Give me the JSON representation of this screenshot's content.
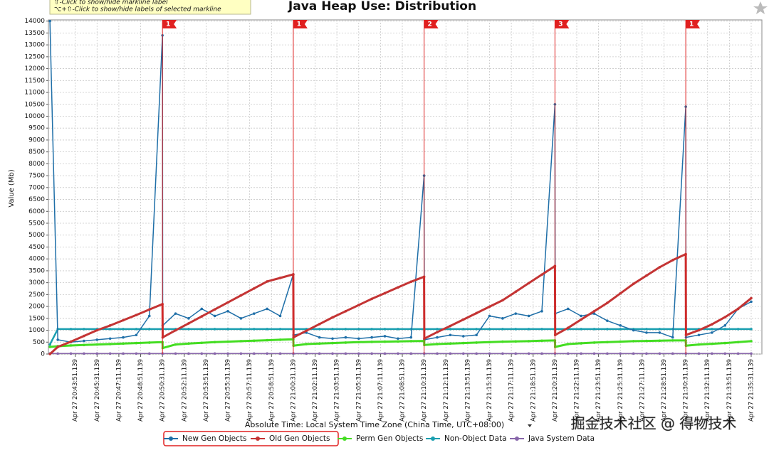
{
  "hints": [
    "⇧-Click to show/hide markline label",
    "⌥+⇧-Click to show/hide labels of selected markline"
  ],
  "watermark": "掘金技术社区 @ 得物技术",
  "chart_data": {
    "type": "line",
    "title": "Java Heap Use: Distribution",
    "y_label": "Value (Mb)",
    "x_label": "Absolute Time: Local System Time Zone (China Time, UTC+08:00)",
    "ylim": [
      0,
      14050
    ],
    "yticks": [
      0,
      500,
      1000,
      1500,
      2000,
      2500,
      3000,
      3500,
      4000,
      4500,
      5000,
      5500,
      6000,
      6500,
      7000,
      7500,
      8000,
      8500,
      9000,
      9500,
      10000,
      10500,
      11000,
      11500,
      12000,
      12500,
      13000,
      13500,
      14000
    ],
    "xlim": [
      "Apr 27 20:41:48.139",
      "Apr 27 21:36:20.139"
    ],
    "xticks": [
      "Apr 27 20:43:51.139",
      "Apr 27 20:45:31.139",
      "Apr 27 20:47:11.139",
      "Apr 27 20:48:51.139",
      "Apr 27 20:50:31.139",
      "Apr 27 20:52:11.139",
      "Apr 27 20:53:51.139",
      "Apr 27 20:55:31.139",
      "Apr 27 20:57:11.139",
      "Apr 27 20:58:51.139",
      "Apr 27 21:00:31.139",
      "Apr 27 21:02:11.139",
      "Apr 27 21:03:51.139",
      "Apr 27 21:05:31.139",
      "Apr 27 21:07:11.139",
      "Apr 27 21:08:51.139",
      "Apr 27 21:10:31.139",
      "Apr 27 21:12:11.139",
      "Apr 27 21:13:51.139",
      "Apr 27 21:15:31.139",
      "Apr 27 21:17:11.139",
      "Apr 27 21:18:51.139",
      "Apr 27 21:20:31.139",
      "Apr 27 21:22:11.139",
      "Apr 27 21:23:51.139",
      "Apr 27 21:25:31.139",
      "Apr 27 21:27:11.139",
      "Apr 27 21:28:51.139",
      "Apr 27 21:30:31.139",
      "Apr 27 21:32:11.139",
      "Apr 27 21:33:51.139",
      "Apr 27 21:35:31.139"
    ],
    "grid": true,
    "x": [
      "Apr 27 20:41:55.139",
      "Apr 27 20:42:31.139",
      "Apr 27 20:43:31.139",
      "Apr 27 20:44:31.139",
      "Apr 27 20:45:31.139",
      "Apr 27 20:46:31.139",
      "Apr 27 20:47:31.139",
      "Apr 27 20:48:31.139",
      "Apr 27 20:49:31.139",
      "Apr 27 20:50:31.139",
      "Apr 27 20:50:32.139",
      "Apr 27 20:51:31.139",
      "Apr 27 20:52:31.139",
      "Apr 27 20:53:31.139",
      "Apr 27 20:54:31.139",
      "Apr 27 20:55:31.139",
      "Apr 27 20:56:31.139",
      "Apr 27 20:57:31.139",
      "Apr 27 20:58:31.139",
      "Apr 27 20:59:31.139",
      "Apr 27 21:00:31.139",
      "Apr 27 21:00:32.139",
      "Apr 27 21:01:31.139",
      "Apr 27 21:02:31.139",
      "Apr 27 21:03:31.139",
      "Apr 27 21:04:31.139",
      "Apr 27 21:05:31.139",
      "Apr 27 21:06:31.139",
      "Apr 27 21:07:31.139",
      "Apr 27 21:08:31.139",
      "Apr 27 21:09:31.139",
      "Apr 27 21:10:31.139",
      "Apr 27 21:10:32.139",
      "Apr 27 21:11:31.139",
      "Apr 27 21:12:31.139",
      "Apr 27 21:13:31.139",
      "Apr 27 21:14:31.139",
      "Apr 27 21:15:31.139",
      "Apr 27 21:16:31.139",
      "Apr 27 21:17:31.139",
      "Apr 27 21:18:31.139",
      "Apr 27 21:19:31.139",
      "Apr 27 21:20:31.139",
      "Apr 27 21:20:32.139",
      "Apr 27 21:21:31.139",
      "Apr 27 21:22:31.139",
      "Apr 27 21:23:31.139",
      "Apr 27 21:24:31.139",
      "Apr 27 21:25:31.139",
      "Apr 27 21:26:31.139",
      "Apr 27 21:27:31.139",
      "Apr 27 21:28:31.139",
      "Apr 27 21:29:31.139",
      "Apr 27 21:30:31.139",
      "Apr 27 21:30:32.139",
      "Apr 27 21:31:31.139",
      "Apr 27 21:32:31.139",
      "Apr 27 21:33:31.139",
      "Apr 27 21:34:31.139",
      "Apr 27 21:35:31.139"
    ],
    "series": [
      {
        "name": "New Gen Objects",
        "color": "#1f6fa8",
        "width": 1.5,
        "values": [
          14000,
          600,
          500,
          550,
          600,
          650,
          700,
          800,
          1600,
          13400,
          1200,
          1700,
          1500,
          1900,
          1600,
          1800,
          1500,
          1700,
          1900,
          1600,
          3350,
          800,
          900,
          700,
          650,
          700,
          650,
          700,
          750,
          650,
          700,
          7500,
          600,
          700,
          800,
          750,
          800,
          1600,
          1500,
          1700,
          1600,
          1800,
          10500,
          1700,
          1900,
          1600,
          1700,
          1400,
          1200,
          1000,
          900,
          900,
          700,
          10400,
          700,
          800,
          900,
          1200,
          1900,
          2200
        ]
      },
      {
        "name": "Old Gen Objects",
        "color": "#c43434",
        "width": 3,
        "values": [
          0,
          300,
          520,
          760,
          1000,
          1200,
          1420,
          1640,
          1870,
          2100,
          700,
          994,
          1288,
          1582,
          1876,
          2170,
          2464,
          2758,
          3052,
          3200,
          3350,
          700,
          980,
          1260,
          1540,
          1800,
          2060,
          2320,
          2560,
          2800,
          3040,
          3250,
          650,
          920,
          1180,
          1450,
          1720,
          1990,
          2260,
          2620,
          2980,
          3340,
          3700,
          800,
          1100,
          1450,
          1800,
          2150,
          2550,
          2950,
          3300,
          3650,
          3950,
          4200,
          800,
          1000,
          1250,
          1550,
          1900,
          2350
        ]
      },
      {
        "name": "Perm Gen Objects",
        "color": "#44dd22",
        "width": 3,
        "values": [
          300,
          330,
          360,
          380,
          400,
          420,
          440,
          460,
          480,
          500,
          250,
          400,
          440,
          470,
          500,
          520,
          540,
          560,
          580,
          600,
          620,
          350,
          420,
          440,
          460,
          480,
          500,
          510,
          520,
          530,
          540,
          550,
          380,
          420,
          440,
          460,
          480,
          500,
          520,
          530,
          540,
          560,
          570,
          300,
          420,
          450,
          480,
          500,
          520,
          540,
          550,
          560,
          570,
          570,
          350,
          400,
          430,
          460,
          500,
          540
        ]
      },
      {
        "name": "Non-Object Data",
        "color": "#1a9fb0",
        "width": 2.5,
        "values": [
          400,
          1050,
          1050,
          1050,
          1050,
          1050,
          1050,
          1050,
          1050,
          1050,
          1050,
          1050,
          1050,
          1050,
          1050,
          1050,
          1050,
          1050,
          1050,
          1050,
          1050,
          1050,
          1050,
          1050,
          1050,
          1050,
          1050,
          1050,
          1050,
          1050,
          1050,
          1050,
          1050,
          1050,
          1050,
          1050,
          1050,
          1050,
          1050,
          1050,
          1050,
          1050,
          1050,
          1050,
          1050,
          1050,
          1050,
          1050,
          1050,
          1050,
          1050,
          1050,
          1050,
          1050,
          1050,
          1050,
          1050,
          1050,
          1050,
          1050
        ]
      },
      {
        "name": "Java System Data",
        "color": "#8866aa",
        "width": 1.5,
        "values": [
          20,
          20,
          20,
          20,
          20,
          20,
          20,
          20,
          20,
          20,
          20,
          20,
          20,
          20,
          20,
          20,
          20,
          20,
          20,
          20,
          20,
          20,
          20,
          20,
          20,
          20,
          20,
          20,
          20,
          20,
          20,
          20,
          20,
          20,
          20,
          20,
          20,
          20,
          20,
          20,
          20,
          20,
          20,
          20,
          20,
          20,
          20,
          20,
          20,
          20,
          20,
          20,
          20,
          20,
          20,
          20,
          20,
          20,
          20,
          20
        ]
      }
    ],
    "marklines": [
      {
        "x": "Apr 27 20:50:31.139",
        "label": "1"
      },
      {
        "x": "Apr 27 21:00:31.139",
        "label": "1"
      },
      {
        "x": "Apr 27 21:10:31.139",
        "label": "2"
      },
      {
        "x": "Apr 27 21:20:31.139",
        "label": "3"
      },
      {
        "x": "Apr 27 21:30:31.139",
        "label": "1"
      }
    ]
  }
}
